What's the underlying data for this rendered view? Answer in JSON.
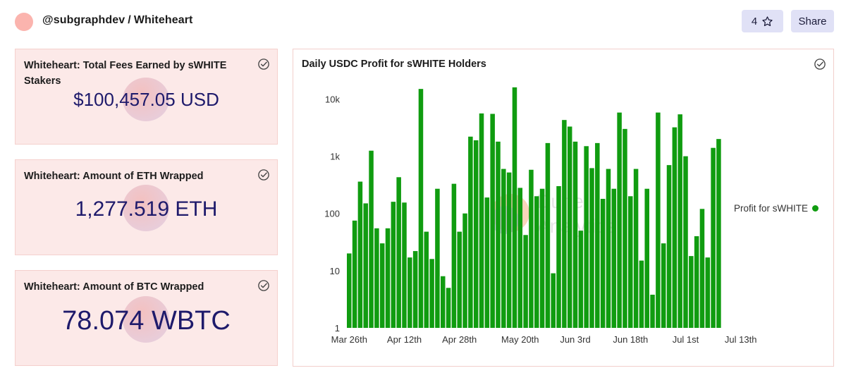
{
  "header": {
    "owner": "@subgraphdev",
    "separator": "/",
    "dashboard": "Whiteheart",
    "star_count": "4",
    "share_label": "Share"
  },
  "cards": [
    {
      "title": "Whiteheart: Total Fees Earned by sWHITE Stakers",
      "value": "$100,457.05 USD"
    },
    {
      "title": "Whiteheart: Amount of ETH Wrapped",
      "value": "1,277.519 ETH"
    },
    {
      "title": "Whiteheart: Amount of BTC Wrapped",
      "value": "78.074 WBTC"
    }
  ],
  "chart": {
    "title": "Daily USDC Profit for sWHITE Holders",
    "watermark": "Dune Analytics",
    "legend_label": "Profit for sWHITE"
  },
  "colors": {
    "accent": "#109c10",
    "card_bg": "#fce9e8",
    "counter_text": "#1e1a6b",
    "button_bg": "#e0e1f6"
  },
  "chart_data": {
    "type": "bar",
    "title": "Daily USDC Profit for sWHITE Holders",
    "xlabel": "",
    "ylabel": "",
    "yscale": "log",
    "ylim": [
      1,
      20000
    ],
    "y_ticks": [
      1,
      10,
      100,
      1000,
      10000
    ],
    "y_tick_labels": [
      "1",
      "10",
      "100",
      "1k",
      "10k"
    ],
    "x_tick_labels": [
      "Mar 26th",
      "Apr 12th",
      "Apr 28th",
      "May 20th",
      "Jun 3rd",
      "Jun 18th",
      "Jul 1st",
      "Jul 13th"
    ],
    "x_tick_index": [
      0,
      10,
      20,
      31,
      41,
      51,
      61,
      71
    ],
    "legend": "right",
    "grid": false,
    "series": [
      {
        "name": "Profit for sWHITE",
        "color": "#109c10",
        "values": [
          20,
          75,
          360,
          150,
          1250,
          55,
          30,
          55,
          160,
          430,
          155,
          17,
          22,
          15000,
          48,
          16,
          270,
          8,
          5,
          330,
          48,
          100,
          2200,
          1900,
          5600,
          190,
          5500,
          1800,
          600,
          520,
          16000,
          280,
          42,
          580,
          200,
          270,
          1700,
          9,
          300,
          4300,
          3300,
          1800,
          50,
          1500,
          620,
          1700,
          180,
          600,
          270,
          5800,
          3000,
          200,
          600,
          15,
          270,
          3.8,
          5800,
          30,
          700,
          3200,
          5400,
          1000,
          18,
          40,
          120,
          17,
          1400,
          2000
        ]
      }
    ]
  }
}
